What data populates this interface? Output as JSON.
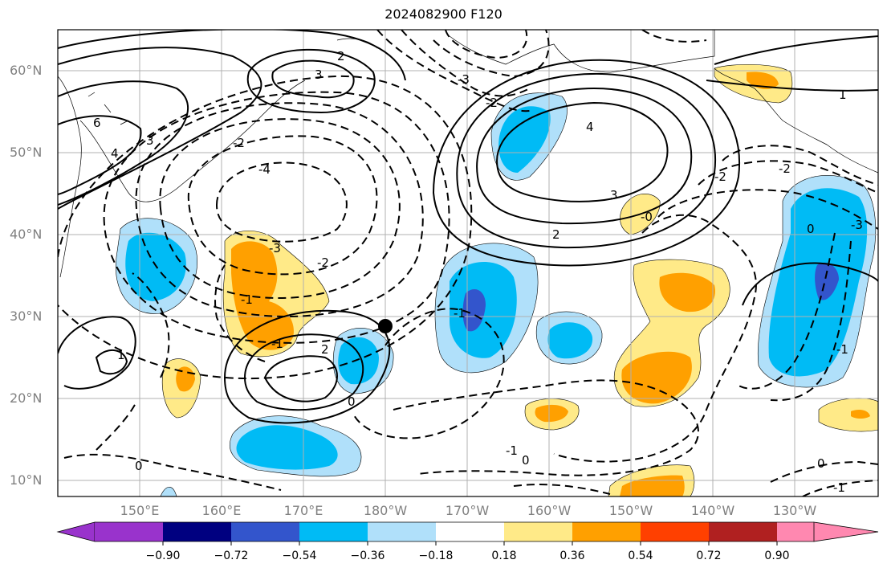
{
  "title": "2024082900 F120",
  "lat_labels": [
    "60°N",
    "50°N",
    "40°N",
    "30°N",
    "20°N",
    "10°N"
  ],
  "lon_labels": [
    "150°E",
    "160°E",
    "170°E",
    "180°W",
    "170°W",
    "160°W",
    "150°W",
    "140°W",
    "130°W"
  ],
  "colorbar": {
    "ticks": [
      "−0.90",
      "−0.72",
      "−0.54",
      "−0.36",
      "−0.18",
      "0.18",
      "0.36",
      "0.54",
      "0.72",
      "0.90"
    ],
    "colors": [
      "#9933cc",
      "#000080",
      "#3355cc",
      "#00bbf5",
      "#b0e0fa",
      "#ffffff",
      "#ffea88",
      "#ffa000",
      "#ff4000",
      "#b02020",
      "#ff88b0"
    ]
  },
  "contour_labels": [
    "-4",
    "-3",
    "-2",
    "-2",
    "-1",
    "-1",
    "-1",
    "0",
    "0",
    "0",
    "0",
    "1",
    "2",
    "2",
    "3",
    "3",
    "4",
    "6",
    "4",
    "-1",
    "-2",
    "-3",
    "-0",
    "-2",
    "0",
    "-1",
    "-2",
    "-3",
    "1",
    "2",
    "3",
    "4",
    "-1",
    "-1"
  ],
  "colors": {
    "land_line": "#000000",
    "contour": "#000000",
    "grid": "#b0b0b0",
    "marker": "#000000"
  }
}
